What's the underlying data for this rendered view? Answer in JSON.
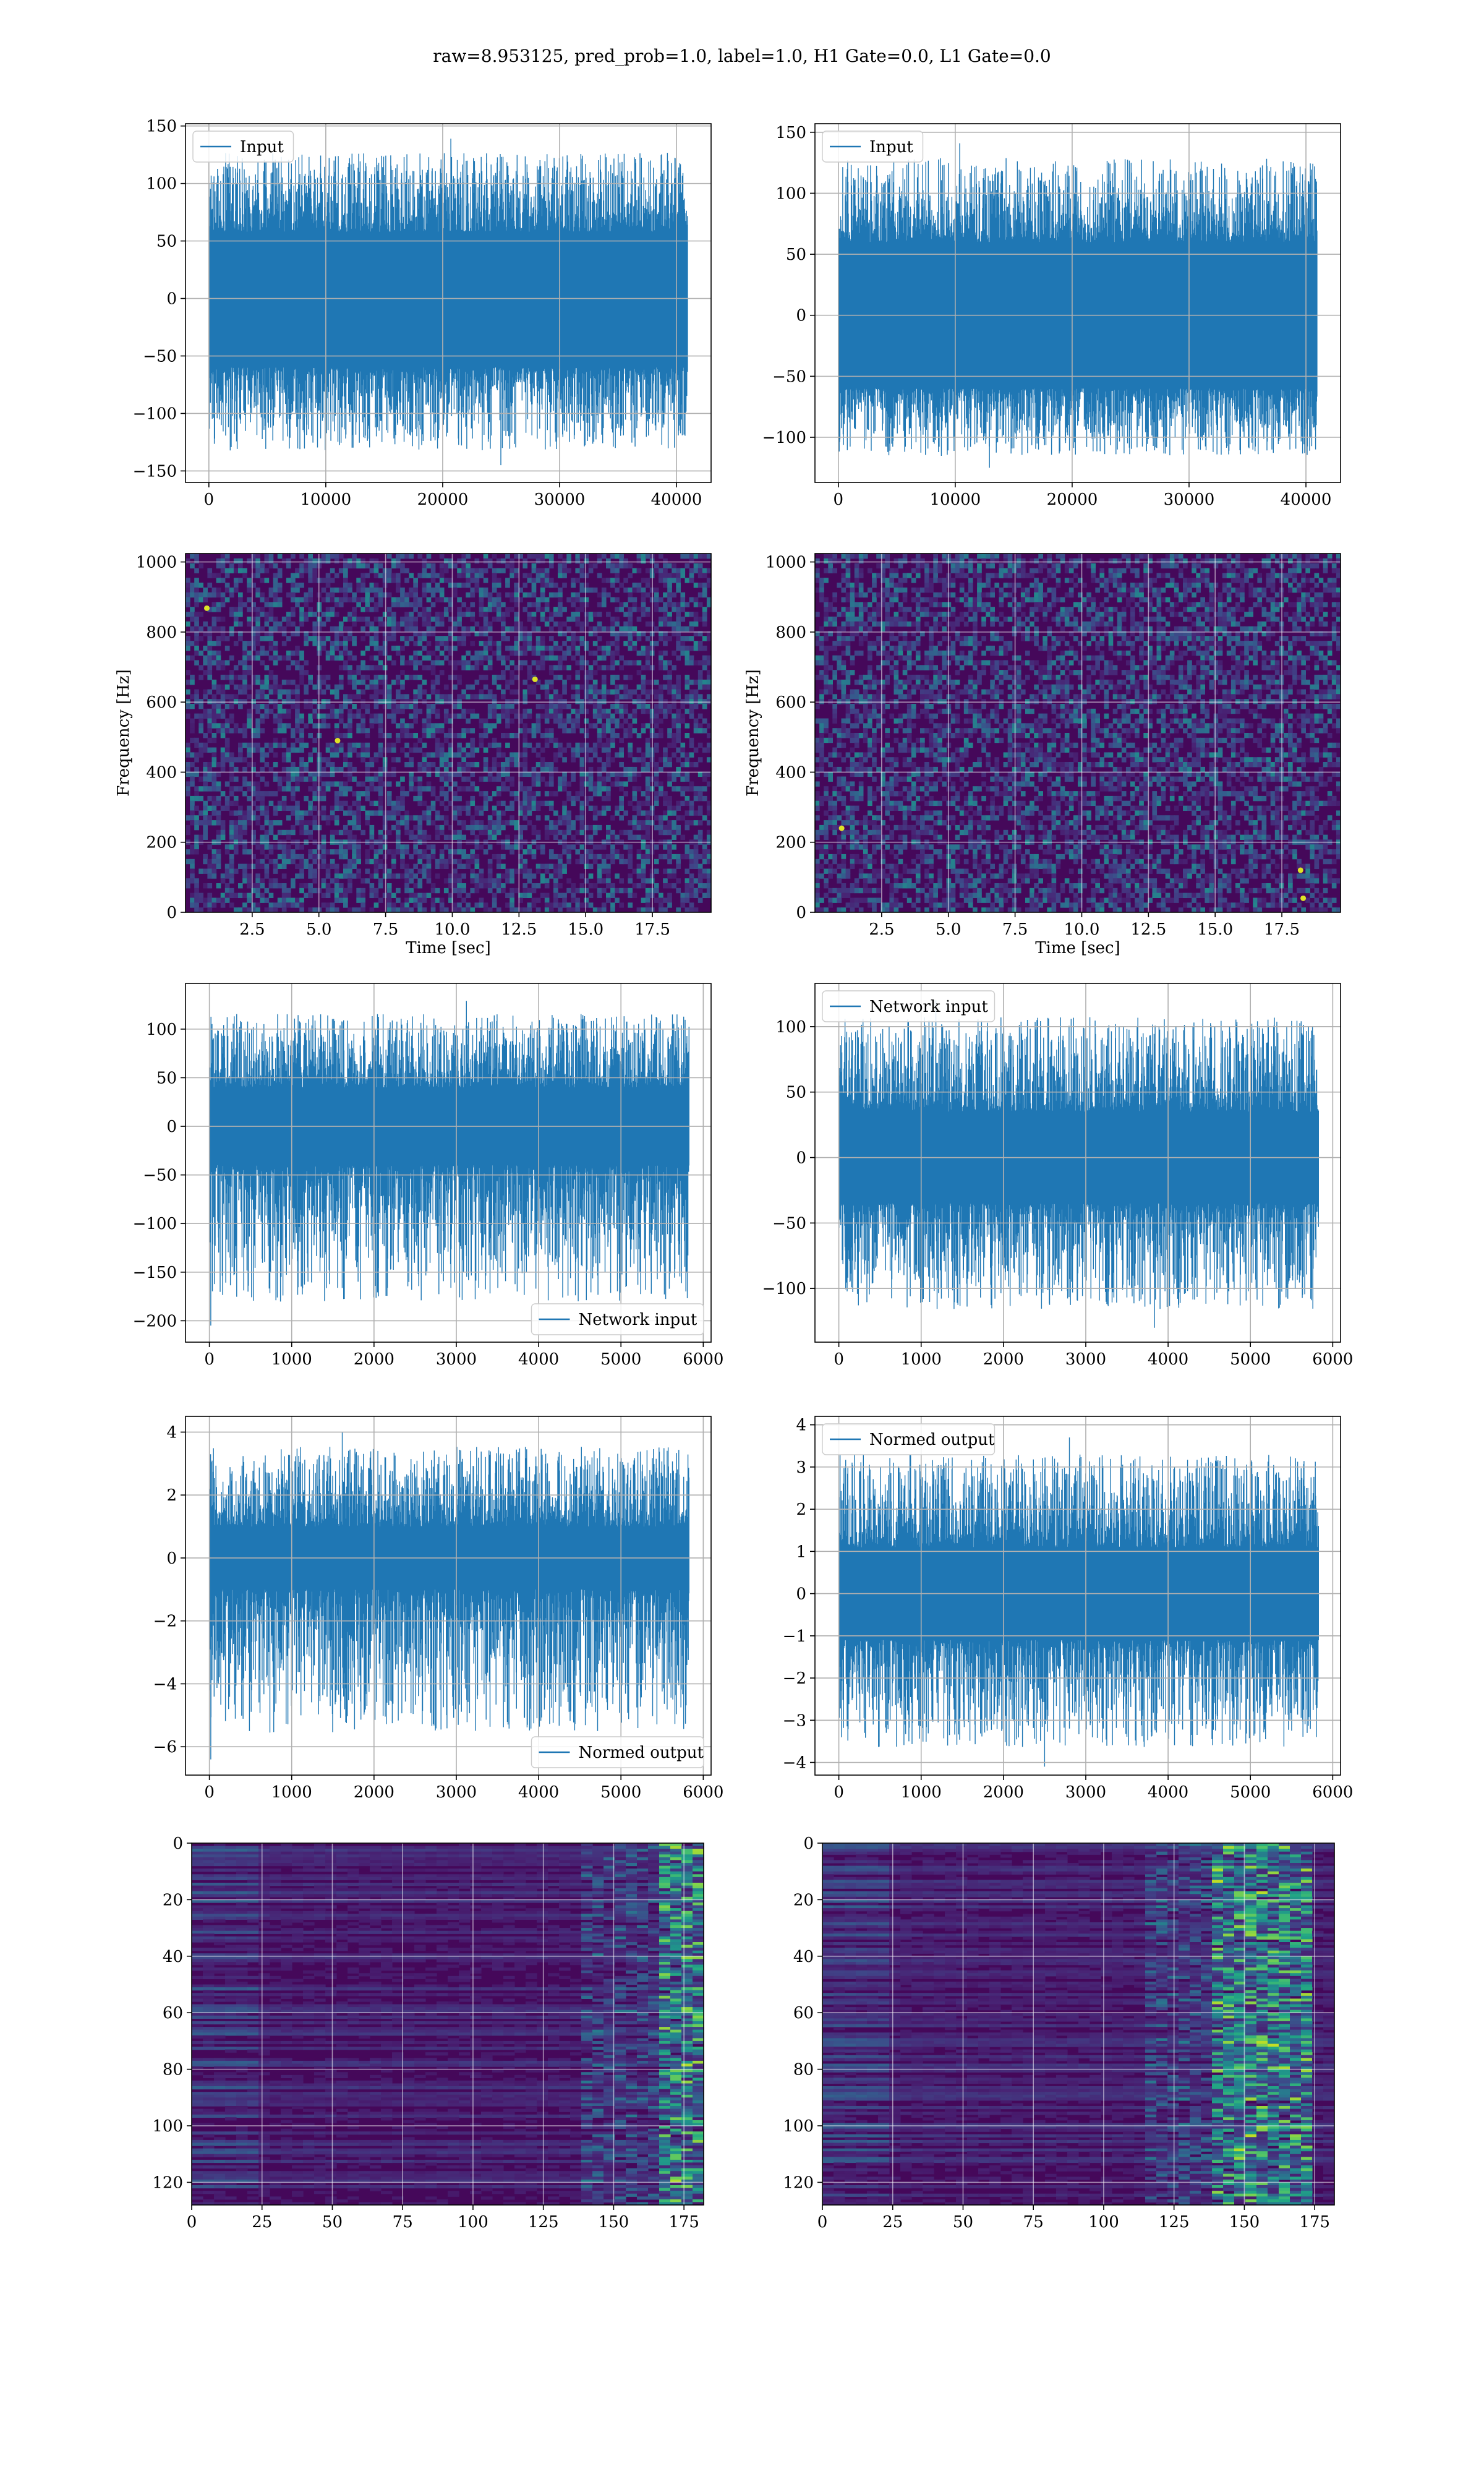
{
  "figure": {
    "title": "raw=8.953125, pred_prob=1.0, label=1.0, H1 Gate=0.0, L1 Gate=0.0"
  },
  "colors": {
    "series": "#1f77b4",
    "grid": "#b0b0b0",
    "colormap": "viridis"
  },
  "chart_data": [
    {
      "id": "h1-input",
      "type": "line",
      "title": "",
      "xlabel": "",
      "ylabel": "",
      "xlim": [
        -2000,
        42960
      ],
      "ylim": [
        -160,
        152
      ],
      "xticks": [
        0,
        10000,
        20000,
        30000,
        40000
      ],
      "yticks": [
        -150,
        -100,
        -50,
        0,
        50,
        100,
        150
      ],
      "series": [
        {
          "name": "Input",
          "n_points": 40960,
          "core_band": [
            -60,
            58
          ],
          "max": 139,
          "min": -145
        }
      ],
      "legend": "upper left",
      "grid": true
    },
    {
      "id": "l1-input",
      "type": "line",
      "title": "",
      "xlabel": "",
      "ylabel": "",
      "xlim": [
        -2000,
        42960
      ],
      "ylim": [
        -137,
        157
      ],
      "xticks": [
        0,
        10000,
        20000,
        30000,
        40000
      ],
      "yticks": [
        -100,
        -50,
        0,
        50,
        100,
        150
      ],
      "series": [
        {
          "name": "Input",
          "n_points": 40960,
          "core_band": [
            -60,
            60
          ],
          "max": 141,
          "min": -125
        }
      ],
      "legend": "upper left",
      "grid": true
    },
    {
      "id": "h1-spectrogram",
      "type": "heatmap",
      "title": "",
      "xlabel": "Time [sec]",
      "ylabel": "Frequency [Hz]",
      "xlim": [
        0,
        19.7
      ],
      "ylim": [
        0,
        1024
      ],
      "xticks": [
        2.5,
        5.0,
        7.5,
        10.0,
        12.5,
        15.0,
        17.5
      ],
      "xtick_labels": [
        "2.5",
        "5.0",
        "7.5",
        "10.0",
        "12.5",
        "15.0",
        "17.5"
      ],
      "yticks": [
        0,
        200,
        400,
        600,
        800,
        1000
      ],
      "colormap": "viridis",
      "grid": true,
      "bright_spots": [
        {
          "x": 5.7,
          "y": 490
        },
        {
          "x": 13.1,
          "y": 665
        },
        {
          "x": 0.8,
          "y": 868
        }
      ],
      "dark_bands_y": [
        490,
        685
      ]
    },
    {
      "id": "l1-spectrogram",
      "type": "heatmap",
      "title": "",
      "xlabel": "Time [sec]",
      "ylabel": "Frequency [Hz]",
      "xlim": [
        0,
        19.7
      ],
      "ylim": [
        0,
        1024
      ],
      "xticks": [
        2.5,
        5.0,
        7.5,
        10.0,
        12.5,
        15.0,
        17.5
      ],
      "xtick_labels": [
        "2.5",
        "5.0",
        "7.5",
        "10.0",
        "12.5",
        "15.0",
        "17.5"
      ],
      "yticks": [
        0,
        200,
        400,
        600,
        800,
        1000
      ],
      "colormap": "viridis",
      "grid": true,
      "bright_spots": [
        {
          "x": 18.2,
          "y": 120
        },
        {
          "x": 18.3,
          "y": 40
        },
        {
          "x": 1.0,
          "y": 240
        }
      ],
      "dark_bands_y": []
    },
    {
      "id": "h1-network-input",
      "type": "line",
      "title": "",
      "xlabel": "",
      "ylabel": "",
      "xlim": [
        -290,
        6095
      ],
      "ylim": [
        -222,
        147
      ],
      "xticks": [
        0,
        1000,
        2000,
        3000,
        4000,
        5000,
        6000
      ],
      "yticks": [
        -200,
        -150,
        -100,
        -50,
        0,
        50,
        100
      ],
      "series": [
        {
          "name": "Network input",
          "n_points": 5829,
          "core_band": [
            -40,
            40
          ],
          "max": 129,
          "min": -205
        }
      ],
      "legend": "lower right",
      "grid": true
    },
    {
      "id": "l1-network-input",
      "type": "line",
      "title": "",
      "xlabel": "",
      "ylabel": "",
      "xlim": [
        -290,
        6095
      ],
      "ylim": [
        -141,
        133
      ],
      "xticks": [
        0,
        1000,
        2000,
        3000,
        4000,
        5000,
        6000
      ],
      "yticks": [
        -100,
        -50,
        0,
        50,
        100
      ],
      "series": [
        {
          "name": "Network input",
          "n_points": 5829,
          "core_band": [
            -35,
            35
          ],
          "max": 120,
          "min": -130
        }
      ],
      "legend": "upper left",
      "grid": true
    },
    {
      "id": "h1-normed-output",
      "type": "line",
      "title": "",
      "xlabel": "",
      "ylabel": "",
      "xlim": [
        -290,
        6095
      ],
      "ylim": [
        -6.9,
        4.5
      ],
      "xticks": [
        0,
        1000,
        2000,
        3000,
        4000,
        5000,
        6000
      ],
      "yticks": [
        -6,
        -4,
        -2,
        0,
        2,
        4
      ],
      "series": [
        {
          "name": "Normed output",
          "n_points": 5829,
          "core_band": [
            -1.0,
            1.0
          ],
          "max": 4.0,
          "min": -6.4
        }
      ],
      "legend": "lower right",
      "grid": true
    },
    {
      "id": "l1-normed-output",
      "type": "line",
      "title": "",
      "xlabel": "",
      "ylabel": "",
      "xlim": [
        -290,
        6095
      ],
      "ylim": [
        -4.3,
        4.2
      ],
      "xticks": [
        0,
        1000,
        2000,
        3000,
        4000,
        5000,
        6000
      ],
      "yticks": [
        -4,
        -3,
        -2,
        -1,
        0,
        1,
        2,
        3,
        4
      ],
      "series": [
        {
          "name": "Normed output",
          "n_points": 5829,
          "core_band": [
            -1.1,
            1.1
          ],
          "max": 3.7,
          "min": -4.1
        }
      ],
      "legend": "upper left",
      "grid": true
    },
    {
      "id": "h1-feature-map",
      "type": "heatmap",
      "title": "",
      "xlabel": "",
      "ylabel": "",
      "xlim": [
        0,
        182
      ],
      "ylim": [
        128,
        0
      ],
      "xticks": [
        0,
        25,
        50,
        75,
        100,
        125,
        150,
        175
      ],
      "yticks": [
        0,
        20,
        40,
        60,
        80,
        100,
        120
      ],
      "rows": 128,
      "cols": 182,
      "colormap": "viridis",
      "grid": true,
      "active_columns": [
        165,
        182
      ]
    },
    {
      "id": "l1-feature-map",
      "type": "heatmap",
      "title": "",
      "xlabel": "",
      "ylabel": "",
      "xlim": [
        0,
        182
      ],
      "ylim": [
        128,
        0
      ],
      "xticks": [
        0,
        25,
        50,
        75,
        100,
        125,
        150,
        175
      ],
      "yticks": [
        0,
        20,
        40,
        60,
        80,
        100,
        120
      ],
      "rows": 128,
      "cols": 182,
      "colormap": "viridis",
      "grid": true,
      "active_columns": [
        140,
        175
      ]
    }
  ]
}
